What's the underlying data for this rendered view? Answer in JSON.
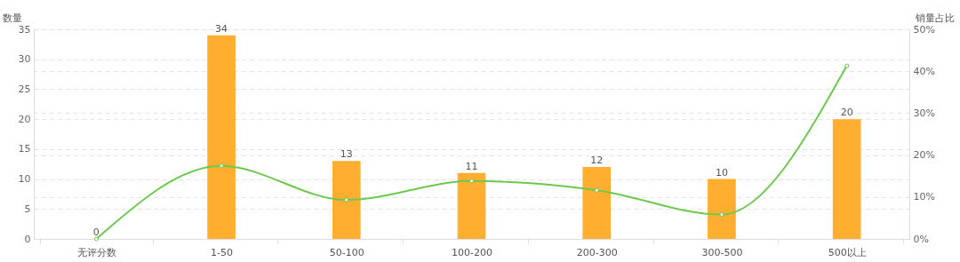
{
  "chart_data": {
    "type": "bar",
    "categories": [
      "无评分数",
      "1-50",
      "50-100",
      "100-200",
      "200-300",
      "300-500",
      "500以上"
    ],
    "ylabel": "数量",
    "y2label": "销量占比",
    "ylim": [
      0,
      35
    ],
    "yticks": [
      0,
      5,
      10,
      15,
      20,
      25,
      30,
      35
    ],
    "y2lim": [
      0,
      50
    ],
    "y2ticks": [
      {
        "value": 0,
        "label": "0%"
      },
      {
        "value": 10,
        "label": "10%"
      },
      {
        "value": 20,
        "label": "20%"
      },
      {
        "value": 30,
        "label": "30%"
      },
      {
        "value": 40,
        "label": "40%"
      },
      {
        "value": 50,
        "label": "50%"
      }
    ],
    "grid": true,
    "series": [
      {
        "color": "#ffae2f",
        "data_labels": true,
        "values": [
          0,
          34,
          13,
          11,
          12,
          10,
          20
        ]
      },
      {
        "type": "line",
        "axis": "y2",
        "color": "#6cc94e",
        "marker": "circle",
        "values": [
          0,
          17.4,
          9.3,
          13.8,
          11.6,
          5.8,
          41.3
        ]
      }
    ]
  }
}
